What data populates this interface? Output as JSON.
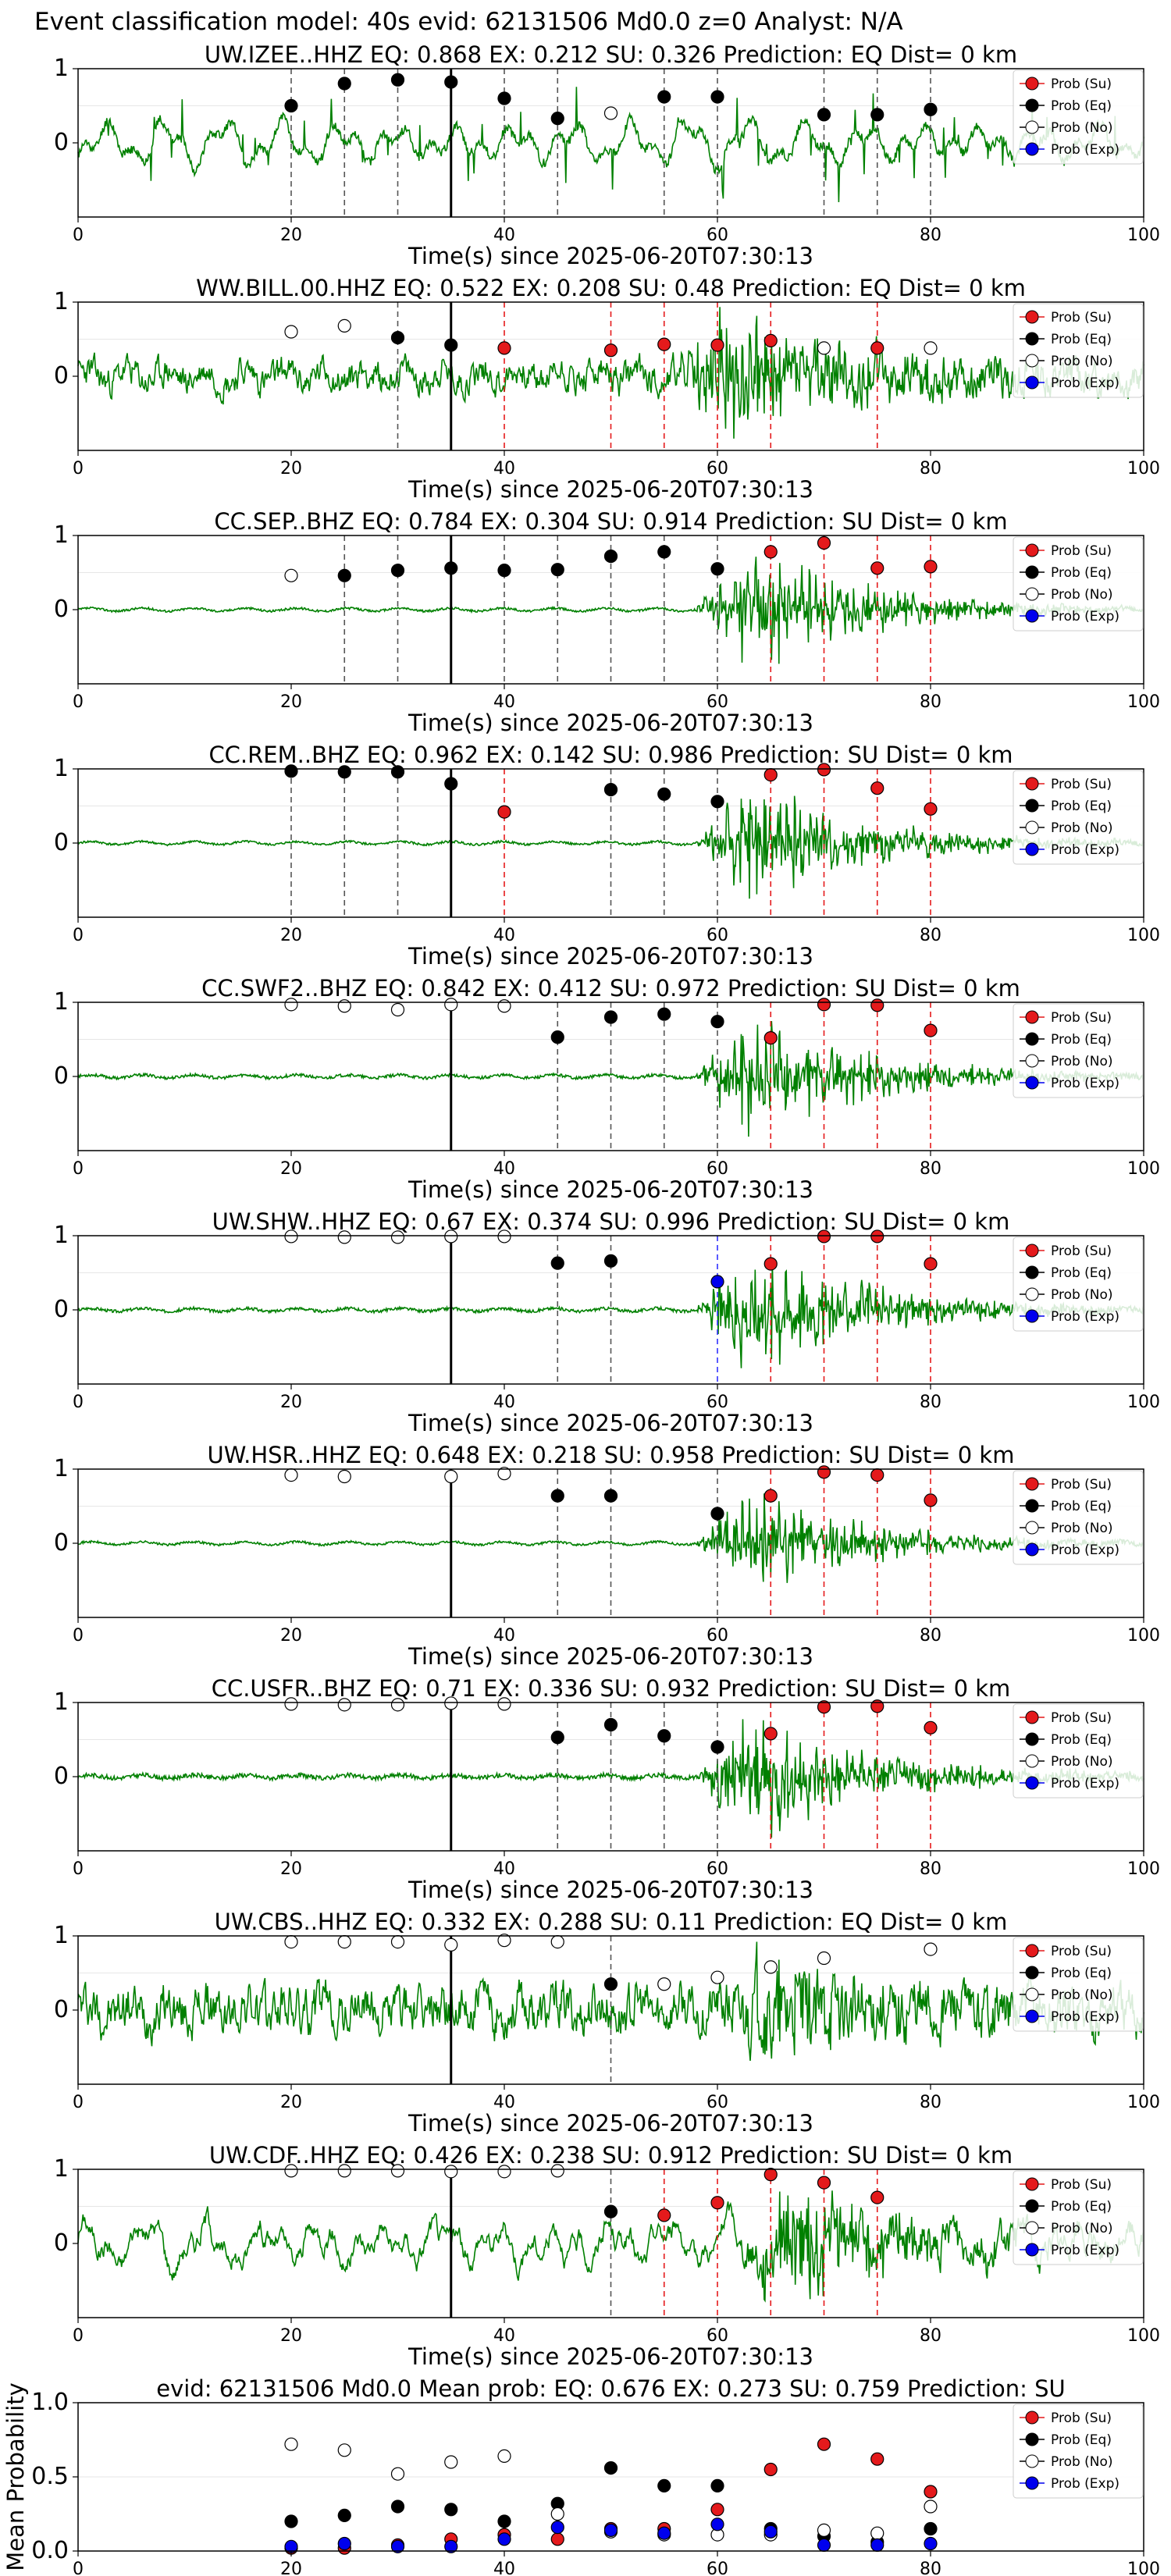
{
  "figure": {
    "suptitle": "Event classification model: 40s evid: 62131506 Md0.0 z=0 Analyst: N/A"
  },
  "legend_entries": [
    {
      "label": "Prob (Su)",
      "color": "#e41a1c",
      "fill": true
    },
    {
      "label": "Prob (Eq)",
      "color": "#000000",
      "fill": true
    },
    {
      "label": "Prob (No)",
      "color": "#ffffff",
      "fill": false
    },
    {
      "label": "Prob (Exp)",
      "color": "#0000ee",
      "fill": true
    }
  ],
  "colors": {
    "trace": "#008000",
    "su": "#e41a1c",
    "eq": "#000000",
    "no": "#ffffff",
    "exp": "#0000ee",
    "su_line": "#e41a1c",
    "eq_line": "#555555",
    "exp_line": "#3030ff",
    "pick_line": "#000000"
  },
  "chart_data": [
    {
      "type": "line+scatter",
      "title": "UW.IZEE..HHZ   EQ: 0.868  EX: 0.212  SU: 0.326   Prediction: EQ    Dist= 0 km",
      "xlabel": "Time(s) since 2025-06-20T07:30:13",
      "xlim": [
        0,
        100
      ],
      "ylim": [
        -1,
        1
      ],
      "xticks": [
        0,
        20,
        40,
        60,
        80,
        100
      ],
      "yticks": [
        0,
        1
      ],
      "pick_time": 35,
      "noise_base": 0.04,
      "signal_amp": 0.45,
      "onset": 0,
      "coda_end": 100,
      "seed": 11,
      "wave": "long",
      "windows": [
        {
          "t": 20,
          "cls": "eq",
          "p": 0.5
        },
        {
          "t": 25,
          "cls": "eq",
          "p": 0.8
        },
        {
          "t": 30,
          "cls": "eq",
          "p": 0.85
        },
        {
          "t": 35,
          "cls": "eq",
          "p": 0.82
        },
        {
          "t": 40,
          "cls": "eq",
          "p": 0.6
        },
        {
          "t": 45,
          "cls": "eq",
          "p": 0.33
        },
        {
          "t": 50,
          "cls": "no",
          "p": 0.4
        },
        {
          "t": 55,
          "cls": "eq",
          "p": 0.62
        },
        {
          "t": 60,
          "cls": "eq",
          "p": 0.62
        },
        {
          "t": 70,
          "cls": "eq",
          "p": 0.38
        },
        {
          "t": 75,
          "cls": "eq",
          "p": 0.38
        },
        {
          "t": 80,
          "cls": "eq",
          "p": 0.45
        }
      ]
    },
    {
      "type": "line+scatter",
      "title": "WW.BILL.00.HHZ   EQ: 0.522  EX: 0.208  SU: 0.48   Prediction: EQ    Dist= 0 km",
      "xlabel": "Time(s) since 2025-06-20T07:30:13",
      "xlim": [
        0,
        100
      ],
      "ylim": [
        -1,
        1
      ],
      "xticks": [
        0,
        20,
        40,
        60,
        80,
        100
      ],
      "yticks": [
        0,
        1
      ],
      "pick_time": 35,
      "noise_base": 0.25,
      "signal_amp": 0.9,
      "onset": 56,
      "coda_end": 100,
      "seed": 23,
      "wave": "noisy",
      "windows": [
        {
          "t": 20,
          "cls": "no",
          "p": 0.6
        },
        {
          "t": 25,
          "cls": "no",
          "p": 0.68
        },
        {
          "t": 30,
          "cls": "eq",
          "p": 0.52
        },
        {
          "t": 35,
          "cls": "eq",
          "p": 0.42
        },
        {
          "t": 40,
          "cls": "su",
          "p": 0.38
        },
        {
          "t": 50,
          "cls": "su",
          "p": 0.35
        },
        {
          "t": 55,
          "cls": "su",
          "p": 0.43
        },
        {
          "t": 60,
          "cls": "su",
          "p": 0.42
        },
        {
          "t": 65,
          "cls": "su",
          "p": 0.48
        },
        {
          "t": 70,
          "cls": "no",
          "p": 0.38
        },
        {
          "t": 75,
          "cls": "su",
          "p": 0.38
        },
        {
          "t": 80,
          "cls": "no",
          "p": 0.38
        }
      ]
    },
    {
      "type": "line+scatter",
      "title": "CC.SEP..BHZ   EQ: 0.784  EX: 0.304  SU: 0.914   Prediction: SU    Dist= 0 km",
      "xlabel": "Time(s) since 2025-06-20T07:30:13",
      "xlim": [
        0,
        100
      ],
      "ylim": [
        -1,
        1
      ],
      "xticks": [
        0,
        20,
        40,
        60,
        80,
        100
      ],
      "yticks": [
        0,
        1
      ],
      "pick_time": 35,
      "noise_base": 0.015,
      "signal_amp": 0.95,
      "onset": 58,
      "coda_end": 100,
      "seed": 37,
      "wave": "quiet",
      "windows": [
        {
          "t": 20,
          "cls": "no",
          "p": 0.46
        },
        {
          "t": 25,
          "cls": "eq",
          "p": 0.46
        },
        {
          "t": 30,
          "cls": "eq",
          "p": 0.53
        },
        {
          "t": 35,
          "cls": "eq",
          "p": 0.56
        },
        {
          "t": 40,
          "cls": "eq",
          "p": 0.53
        },
        {
          "t": 45,
          "cls": "eq",
          "p": 0.54
        },
        {
          "t": 50,
          "cls": "eq",
          "p": 0.72
        },
        {
          "t": 55,
          "cls": "eq",
          "p": 0.78
        },
        {
          "t": 60,
          "cls": "eq",
          "p": 0.55
        },
        {
          "t": 65,
          "cls": "su",
          "p": 0.78
        },
        {
          "t": 70,
          "cls": "su",
          "p": 0.9
        },
        {
          "t": 75,
          "cls": "su",
          "p": 0.56
        },
        {
          "t": 80,
          "cls": "su",
          "p": 0.58
        }
      ]
    },
    {
      "type": "line+scatter",
      "title": "CC.REM..BHZ   EQ: 0.962  EX: 0.142  SU: 0.986   Prediction: SU    Dist= 0 km",
      "xlabel": "Time(s) since 2025-06-20T07:30:13",
      "xlim": [
        0,
        100
      ],
      "ylim": [
        -1,
        1
      ],
      "xticks": [
        0,
        20,
        40,
        60,
        80,
        100
      ],
      "yticks": [
        0,
        1
      ],
      "pick_time": 35,
      "noise_base": 0.015,
      "signal_amp": 0.95,
      "onset": 58,
      "coda_end": 100,
      "seed": 41,
      "wave": "quiet",
      "windows": [
        {
          "t": 20,
          "cls": "eq",
          "p": 0.97
        },
        {
          "t": 25,
          "cls": "eq",
          "p": 0.96
        },
        {
          "t": 30,
          "cls": "eq",
          "p": 0.96
        },
        {
          "t": 35,
          "cls": "eq",
          "p": 0.8
        },
        {
          "t": 40,
          "cls": "su",
          "p": 0.42
        },
        {
          "t": 50,
          "cls": "eq",
          "p": 0.72
        },
        {
          "t": 55,
          "cls": "eq",
          "p": 0.66
        },
        {
          "t": 60,
          "cls": "eq",
          "p": 0.56
        },
        {
          "t": 65,
          "cls": "su",
          "p": 0.92
        },
        {
          "t": 70,
          "cls": "su",
          "p": 0.99
        },
        {
          "t": 75,
          "cls": "su",
          "p": 0.74
        },
        {
          "t": 80,
          "cls": "su",
          "p": 0.46
        }
      ]
    },
    {
      "type": "line+scatter",
      "title": "CC.SWF2..BHZ   EQ: 0.842  EX: 0.412  SU: 0.972   Prediction: SU    Dist= 0 km",
      "xlabel": "Time(s) since 2025-06-20T07:30:13",
      "xlim": [
        0,
        100
      ],
      "ylim": [
        -1,
        1
      ],
      "xticks": [
        0,
        20,
        40,
        60,
        80,
        100
      ],
      "yticks": [
        0,
        1
      ],
      "pick_time": 35,
      "noise_base": 0.02,
      "signal_amp": 0.95,
      "onset": 58,
      "coda_end": 100,
      "seed": 53,
      "wave": "quiet",
      "windows": [
        {
          "t": 20,
          "cls": "no",
          "p": 0.97
        },
        {
          "t": 25,
          "cls": "no",
          "p": 0.95
        },
        {
          "t": 30,
          "cls": "no",
          "p": 0.9
        },
        {
          "t": 35,
          "cls": "no",
          "p": 0.97
        },
        {
          "t": 40,
          "cls": "no",
          "p": 0.95
        },
        {
          "t": 45,
          "cls": "eq",
          "p": 0.53
        },
        {
          "t": 50,
          "cls": "eq",
          "p": 0.8
        },
        {
          "t": 55,
          "cls": "eq",
          "p": 0.84
        },
        {
          "t": 60,
          "cls": "eq",
          "p": 0.74
        },
        {
          "t": 65,
          "cls": "su",
          "p": 0.52
        },
        {
          "t": 70,
          "cls": "su",
          "p": 0.97
        },
        {
          "t": 75,
          "cls": "su",
          "p": 0.96
        },
        {
          "t": 80,
          "cls": "su",
          "p": 0.62
        }
      ]
    },
    {
      "type": "line+scatter",
      "title": "UW.SHW..HHZ   EQ: 0.67  EX: 0.374  SU: 0.996   Prediction: SU    Dist= 0 km",
      "xlabel": "Time(s) since 2025-06-20T07:30:13",
      "xlim": [
        0,
        100
      ],
      "ylim": [
        -1,
        1
      ],
      "xticks": [
        0,
        20,
        40,
        60,
        80,
        100
      ],
      "yticks": [
        0,
        1
      ],
      "pick_time": 35,
      "noise_base": 0.02,
      "signal_amp": 1.05,
      "onset": 58,
      "coda_end": 100,
      "seed": 67,
      "wave": "quiet",
      "windows": [
        {
          "t": 20,
          "cls": "no",
          "p": 0.99
        },
        {
          "t": 25,
          "cls": "no",
          "p": 0.98
        },
        {
          "t": 30,
          "cls": "no",
          "p": 0.98
        },
        {
          "t": 35,
          "cls": "no",
          "p": 0.99
        },
        {
          "t": 40,
          "cls": "no",
          "p": 0.99
        },
        {
          "t": 45,
          "cls": "eq",
          "p": 0.63
        },
        {
          "t": 50,
          "cls": "eq",
          "p": 0.66
        },
        {
          "t": 60,
          "cls": "exp",
          "p": 0.38
        },
        {
          "t": 65,
          "cls": "su",
          "p": 0.62
        },
        {
          "t": 70,
          "cls": "su",
          "p": 0.99
        },
        {
          "t": 75,
          "cls": "su",
          "p": 0.99
        },
        {
          "t": 80,
          "cls": "su",
          "p": 0.62
        }
      ]
    },
    {
      "type": "line+scatter",
      "title": "UW.HSR..HHZ   EQ: 0.648  EX: 0.218  SU: 0.958   Prediction: SU    Dist= 0 km",
      "xlabel": "Time(s) since 2025-06-20T07:30:13",
      "xlim": [
        0,
        100
      ],
      "ylim": [
        -1,
        1
      ],
      "xticks": [
        0,
        20,
        40,
        60,
        80,
        100
      ],
      "yticks": [
        0,
        1
      ],
      "pick_time": 35,
      "noise_base": 0.015,
      "signal_amp": 0.8,
      "onset": 58,
      "coda_end": 100,
      "seed": 71,
      "wave": "quiet",
      "windows": [
        {
          "t": 20,
          "cls": "no",
          "p": 0.92
        },
        {
          "t": 25,
          "cls": "no",
          "p": 0.9
        },
        {
          "t": 35,
          "cls": "no",
          "p": 0.9
        },
        {
          "t": 40,
          "cls": "no",
          "p": 0.94
        },
        {
          "t": 45,
          "cls": "eq",
          "p": 0.64
        },
        {
          "t": 50,
          "cls": "eq",
          "p": 0.64
        },
        {
          "t": 60,
          "cls": "eq",
          "p": 0.4
        },
        {
          "t": 65,
          "cls": "su",
          "p": 0.64
        },
        {
          "t": 70,
          "cls": "su",
          "p": 0.96
        },
        {
          "t": 75,
          "cls": "su",
          "p": 0.92
        },
        {
          "t": 80,
          "cls": "su",
          "p": 0.58
        }
      ]
    },
    {
      "type": "line+scatter",
      "title": "CC.USFR..BHZ   EQ: 0.71  EX: 0.336  SU: 0.932   Prediction: SU    Dist= 0 km",
      "xlabel": "Time(s) since 2025-06-20T07:30:13",
      "xlim": [
        0,
        100
      ],
      "ylim": [
        -1,
        1
      ],
      "xticks": [
        0,
        20,
        40,
        60,
        80,
        100
      ],
      "yticks": [
        0,
        1
      ],
      "pick_time": 35,
      "noise_base": 0.03,
      "signal_amp": 1.0,
      "onset": 58,
      "coda_end": 100,
      "seed": 83,
      "wave": "quiet",
      "windows": [
        {
          "t": 20,
          "cls": "no",
          "p": 0.98
        },
        {
          "t": 25,
          "cls": "no",
          "p": 0.97
        },
        {
          "t": 30,
          "cls": "no",
          "p": 0.97
        },
        {
          "t": 35,
          "cls": "no",
          "p": 0.99
        },
        {
          "t": 40,
          "cls": "no",
          "p": 0.98
        },
        {
          "t": 45,
          "cls": "eq",
          "p": 0.53
        },
        {
          "t": 50,
          "cls": "eq",
          "p": 0.7
        },
        {
          "t": 55,
          "cls": "eq",
          "p": 0.55
        },
        {
          "t": 60,
          "cls": "eq",
          "p": 0.4
        },
        {
          "t": 65,
          "cls": "su",
          "p": 0.58
        },
        {
          "t": 70,
          "cls": "su",
          "p": 0.94
        },
        {
          "t": 75,
          "cls": "su",
          "p": 0.95
        },
        {
          "t": 80,
          "cls": "su",
          "p": 0.66
        }
      ]
    },
    {
      "type": "line+scatter",
      "title": "UW.CBS..HHZ   EQ: 0.332  EX: 0.288  SU: 0.11   Prediction: EQ    Dist= 0 km",
      "xlabel": "Time(s) since 2025-06-20T07:30:13",
      "xlim": [
        0,
        100
      ],
      "ylim": [
        -1,
        1
      ],
      "xticks": [
        0,
        20,
        40,
        60,
        80,
        100
      ],
      "yticks": [
        0,
        1
      ],
      "pick_time": 35,
      "noise_base": 0.38,
      "signal_amp": 0.55,
      "onset": 60,
      "coda_end": 100,
      "seed": 97,
      "wave": "noisy",
      "windows": [
        {
          "t": 20,
          "cls": "no",
          "p": 0.92
        },
        {
          "t": 25,
          "cls": "no",
          "p": 0.92
        },
        {
          "t": 30,
          "cls": "no",
          "p": 0.92
        },
        {
          "t": 35,
          "cls": "no",
          "p": 0.88
        },
        {
          "t": 40,
          "cls": "no",
          "p": 0.94
        },
        {
          "t": 45,
          "cls": "no",
          "p": 0.92
        },
        {
          "t": 50,
          "cls": "eq",
          "p": 0.35
        },
        {
          "t": 55,
          "cls": "no",
          "p": 0.35
        },
        {
          "t": 60,
          "cls": "no",
          "p": 0.44
        },
        {
          "t": 65,
          "cls": "no",
          "p": 0.58
        },
        {
          "t": 70,
          "cls": "no",
          "p": 0.7
        },
        {
          "t": 80,
          "cls": "no",
          "p": 0.82
        }
      ]
    },
    {
      "type": "line+scatter",
      "title": "UW.CDF..HHZ   EQ: 0.426  EX: 0.238  SU: 0.912   Prediction: SU    Dist= 0 km",
      "xlabel": "Time(s) since 2025-06-20T07:30:13",
      "xlim": [
        0,
        100
      ],
      "ylim": [
        -1,
        1
      ],
      "xticks": [
        0,
        20,
        40,
        60,
        80,
        100
      ],
      "yticks": [
        0,
        1
      ],
      "pick_time": 35,
      "noise_base": 0.35,
      "signal_amp": 0.8,
      "onset": 62,
      "coda_end": 100,
      "seed": 101,
      "wave": "long",
      "windows": [
        {
          "t": 20,
          "cls": "no",
          "p": 0.98
        },
        {
          "t": 25,
          "cls": "no",
          "p": 0.98
        },
        {
          "t": 30,
          "cls": "no",
          "p": 0.98
        },
        {
          "t": 35,
          "cls": "no",
          "p": 0.97
        },
        {
          "t": 40,
          "cls": "no",
          "p": 0.97
        },
        {
          "t": 45,
          "cls": "no",
          "p": 0.98
        },
        {
          "t": 50,
          "cls": "eq",
          "p": 0.43
        },
        {
          "t": 55,
          "cls": "su",
          "p": 0.38
        },
        {
          "t": 60,
          "cls": "su",
          "p": 0.55
        },
        {
          "t": 65,
          "cls": "su",
          "p": 0.93
        },
        {
          "t": 70,
          "cls": "su",
          "p": 0.82
        },
        {
          "t": 75,
          "cls": "su",
          "p": 0.62
        }
      ]
    },
    {
      "type": "scatter",
      "title": "evid: 62131506  Md0.0   Mean prob:   EQ: 0.676  EX: 0.273  SU: 0.759   Prediction: SU",
      "ylabel": "Mean Probability",
      "xlim": [
        0,
        100
      ],
      "ylim": [
        0,
        1
      ],
      "xticks": [
        0,
        20,
        40,
        60,
        80,
        100
      ],
      "yticks": [
        0.0,
        0.5,
        1.0
      ],
      "x": [
        20,
        25,
        30,
        35,
        40,
        45,
        50,
        55,
        60,
        65,
        70,
        75,
        80
      ],
      "series": [
        {
          "name": "Prob (Su)",
          "cls": "su",
          "values": [
            0.02,
            0.02,
            0.04,
            0.08,
            0.11,
            0.08,
            0.15,
            0.15,
            0.28,
            0.55,
            0.72,
            0.62,
            0.4
          ]
        },
        {
          "name": "Prob (Eq)",
          "cls": "eq",
          "values": [
            0.2,
            0.24,
            0.3,
            0.28,
            0.2,
            0.32,
            0.56,
            0.44,
            0.44,
            0.15,
            0.1,
            0.06,
            0.15
          ]
        },
        {
          "name": "Prob (No)",
          "cls": "no",
          "values": [
            0.72,
            0.68,
            0.52,
            0.6,
            0.64,
            0.25,
            0.13,
            0.11,
            0.11,
            0.11,
            0.14,
            0.12,
            0.3
          ]
        },
        {
          "name": "Prob (Exp)",
          "cls": "exp",
          "values": [
            0.03,
            0.05,
            0.03,
            0.03,
            0.08,
            0.16,
            0.14,
            0.12,
            0.18,
            0.13,
            0.04,
            0.04,
            0.05
          ]
        }
      ]
    }
  ]
}
